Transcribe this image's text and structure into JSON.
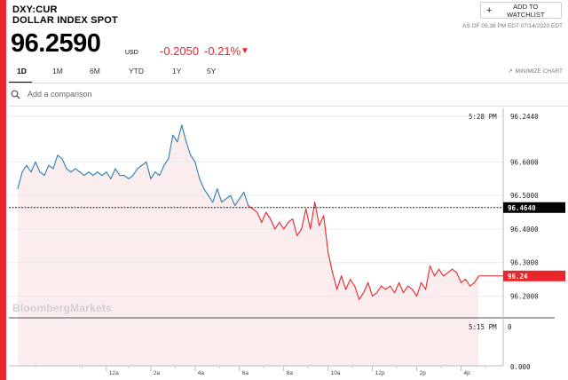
{
  "header": {
    "ticker": "DXY:CUR",
    "name": "DOLLAR INDEX SPOT",
    "price": "96.2590",
    "currency": "USD",
    "change": "-0.2050",
    "change_pct": "-0.21%",
    "watchlist_label": "ADD TO WATCHLIST",
    "timestamp": "AS OF 05:38 PM EDT 07/14/2020 EDT"
  },
  "tabs": [
    "1D",
    "1M",
    "6M",
    "YTD",
    "1Y",
    "5Y"
  ],
  "active_tab": "1D",
  "minimize_label": "MINIMIZE CHART",
  "compare": {
    "placeholder": "Add a comparison"
  },
  "watermark": "BloombergMarkets",
  "colors": {
    "accent": "#e8262b",
    "up_line": "#2a7db5",
    "down_line": "#e8262b",
    "area_fill": "#fbeced"
  },
  "chart_data": {
    "type": "line",
    "title": "",
    "xlabel": "",
    "ylabel": "",
    "ylim": [
      96.135,
      96.76
    ],
    "y_ticks": [
      "96.6000",
      "96.5000",
      "96.4000",
      "96.3000",
      "96.2000"
    ],
    "x_ticks": [
      "12a",
      "2a",
      "4a",
      "6a",
      "8a",
      "10a",
      "12p",
      "2p",
      "4p"
    ],
    "x_tick_hours": [
      0,
      2,
      4,
      6,
      8,
      10,
      12,
      14,
      16
    ],
    "x_range_hours": [
      -4.4,
      17.9
    ],
    "secondary_tick": "0.000",
    "secondary_ticks": [
      "96.2440",
      "0"
    ],
    "high_time": "5:28 PM",
    "low_time": "5:15 PM",
    "prev_close": 96.464,
    "prev_close_label": "96.4640",
    "last_label": "96.24",
    "series": [
      {
        "x": [
          -4.0,
          -3.8,
          -3.6,
          -3.4,
          -3.2,
          -3.0,
          -2.8,
          -2.6,
          -2.4,
          -2.2,
          -2.0,
          -1.8,
          -1.6,
          -1.4,
          -1.2,
          -1.0,
          -0.8,
          -0.6,
          -0.4,
          -0.2,
          0.0,
          0.2,
          0.4,
          0.6,
          0.8,
          1.0,
          1.2,
          1.4,
          1.6,
          1.8,
          2.0,
          2.2,
          2.4,
          2.6,
          2.8,
          3.0,
          3.2,
          3.4,
          3.6,
          3.8,
          4.0,
          4.2,
          4.4,
          4.6,
          4.8,
          5.0,
          5.2,
          5.4,
          5.6,
          5.8,
          6.0,
          6.2,
          6.4,
          6.6,
          6.8,
          7.0,
          7.2,
          7.4,
          7.6,
          7.8,
          8.0,
          8.2,
          8.4,
          8.6,
          8.8,
          9.0,
          9.2,
          9.4,
          9.6,
          9.8,
          10.0,
          10.2,
          10.4,
          10.6,
          10.8,
          11.0,
          11.2,
          11.4,
          11.6,
          11.8,
          12.0,
          12.2,
          12.4,
          12.6,
          12.8,
          13.0,
          13.2,
          13.4,
          13.6,
          13.8,
          14.0,
          14.2,
          14.4,
          14.6,
          14.8,
          15.0,
          15.2,
          15.4,
          15.6,
          15.8,
          16.0,
          16.2,
          16.4,
          16.6,
          16.8
        ],
        "y": [
          96.52,
          96.57,
          96.59,
          96.57,
          96.6,
          96.57,
          96.56,
          96.59,
          96.58,
          96.62,
          96.61,
          96.58,
          96.57,
          96.58,
          96.57,
          96.56,
          96.57,
          96.56,
          96.57,
          96.56,
          96.57,
          96.55,
          96.58,
          96.56,
          96.56,
          96.55,
          96.56,
          96.58,
          96.59,
          96.6,
          96.55,
          96.57,
          96.56,
          96.59,
          96.61,
          96.68,
          96.66,
          96.71,
          96.66,
          96.62,
          96.6,
          96.55,
          96.52,
          96.5,
          96.48,
          96.52,
          96.48,
          96.49,
          96.5,
          96.47,
          96.49,
          96.51,
          96.47,
          96.46,
          96.45,
          96.42,
          96.45,
          96.43,
          96.4,
          96.42,
          96.4,
          96.42,
          96.43,
          96.38,
          96.4,
          96.46,
          96.4,
          96.48,
          96.41,
          96.44,
          96.33,
          96.27,
          96.22,
          96.26,
          96.22,
          96.25,
          96.23,
          96.19,
          96.21,
          96.24,
          96.2,
          96.21,
          96.23,
          96.22,
          96.23,
          96.21,
          96.24,
          96.21,
          96.23,
          96.22,
          96.2,
          96.24,
          96.22,
          96.29,
          96.26,
          96.28,
          96.26,
          96.27,
          96.28,
          96.27,
          96.24,
          96.25,
          96.23,
          96.24,
          96.26
        ]
      }
    ]
  }
}
